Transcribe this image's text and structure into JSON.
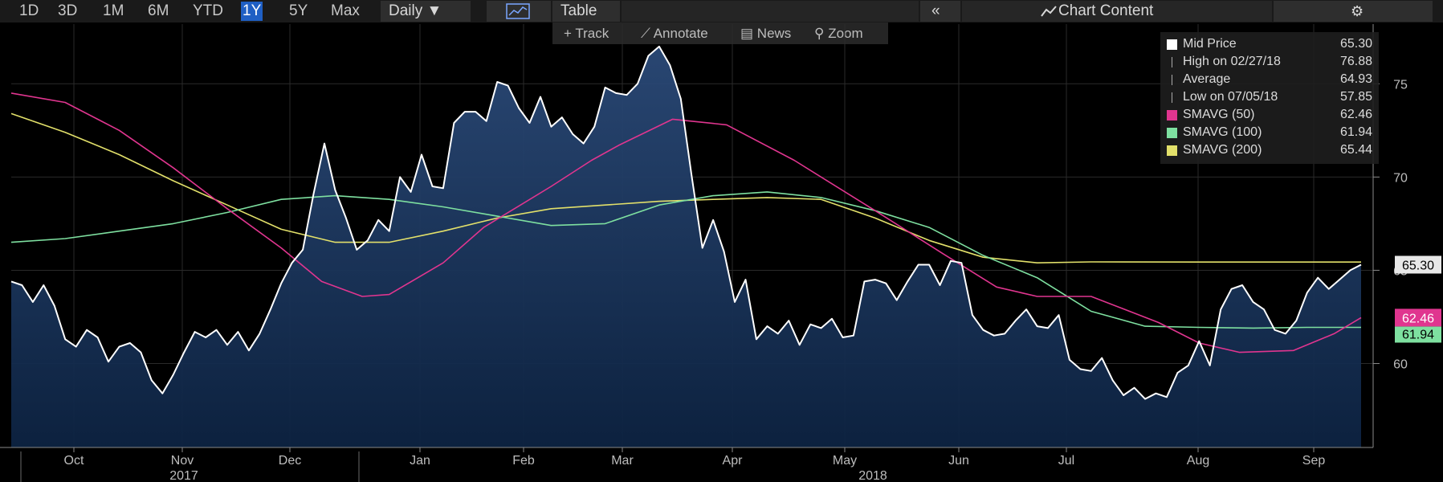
{
  "toolbar": {
    "ranges": [
      "1D",
      "3D",
      "1M",
      "6M",
      "YTD",
      "1Y",
      "5Y",
      "Max"
    ],
    "active_range": "1Y",
    "interval": "Daily ▼",
    "chart_icon": "line-chart-icon",
    "table_label": "Table",
    "collapse": "«",
    "chart_content": "Chart Content",
    "settings_icon": "gear-icon"
  },
  "tools": {
    "track": "Track",
    "annotate": "Annotate",
    "news": "News",
    "zoom": "Zoom"
  },
  "legend": [
    {
      "name": "Mid Price",
      "value": "65.30",
      "color": "#ffffff"
    },
    {
      "name": "High on 02/27/18",
      "value": "76.88",
      "color": "#aaaaaa"
    },
    {
      "name": "Average",
      "value": "64.93",
      "color": "#aaaaaa"
    },
    {
      "name": "Low on 07/05/18",
      "value": "57.85",
      "color": "#aaaaaa"
    },
    {
      "name": "SMAVG (50)",
      "value": "62.46",
      "color": "#e0358f"
    },
    {
      "name": "SMAVG (100)",
      "value": "61.94",
      "color": "#7ee0a0"
    },
    {
      "name": "SMAVG (200)",
      "value": "65.44",
      "color": "#e2e06a"
    }
  ],
  "badges": {
    "price": "65.30",
    "sma50": "62.46",
    "sma100": "61.94"
  },
  "chart_data": {
    "type": "line",
    "title": "",
    "xlabel": "",
    "ylabel": "",
    "ylim": [
      55.5,
      78.2
    ],
    "y_ticks": [
      60,
      65,
      70,
      75
    ],
    "x_ticks": [
      "Oct",
      "Nov",
      "Dec",
      "Jan",
      "Feb",
      "Mar",
      "Apr",
      "May",
      "Jun",
      "Jul",
      "Aug",
      "Sep"
    ],
    "year_labels": [
      "2017",
      "2018"
    ],
    "series": [
      {
        "name": "Mid Price",
        "color": "#ffffff",
        "fill": true,
        "values": [
          [
            0,
            64.4
          ],
          [
            4,
            64.2
          ],
          [
            8,
            63.3
          ],
          [
            12,
            64.2
          ],
          [
            16,
            63.1
          ],
          [
            20,
            61.3
          ],
          [
            24,
            60.9
          ],
          [
            28,
            61.8
          ],
          [
            32,
            61.4
          ],
          [
            36,
            60.1
          ],
          [
            40,
            60.9
          ],
          [
            44,
            61.1
          ],
          [
            48,
            60.6
          ],
          [
            52,
            59.1
          ],
          [
            56,
            58.4
          ],
          [
            60,
            59.4
          ],
          [
            64,
            60.6
          ],
          [
            68,
            61.7
          ],
          [
            72,
            61.4
          ],
          [
            76,
            61.8
          ],
          [
            80,
            61.0
          ],
          [
            84,
            61.7
          ],
          [
            88,
            60.7
          ],
          [
            92,
            61.6
          ],
          [
            96,
            62.9
          ],
          [
            100,
            64.3
          ],
          [
            104,
            65.4
          ],
          [
            108,
            66.1
          ],
          [
            112,
            69.1
          ],
          [
            116,
            71.8
          ],
          [
            120,
            69.3
          ],
          [
            124,
            67.8
          ],
          [
            128,
            66.1
          ],
          [
            132,
            66.6
          ],
          [
            136,
            67.7
          ],
          [
            140,
            67.1
          ],
          [
            144,
            70.0
          ],
          [
            148,
            69.2
          ],
          [
            152,
            71.2
          ],
          [
            156,
            69.5
          ],
          [
            160,
            69.4
          ],
          [
            164,
            72.9
          ],
          [
            168,
            73.5
          ],
          [
            172,
            73.5
          ],
          [
            176,
            73.0
          ],
          [
            180,
            75.1
          ],
          [
            184,
            74.9
          ],
          [
            188,
            73.7
          ],
          [
            192,
            72.9
          ],
          [
            196,
            74.3
          ],
          [
            200,
            72.7
          ],
          [
            204,
            73.2
          ],
          [
            208,
            72.3
          ],
          [
            212,
            71.8
          ],
          [
            216,
            72.7
          ],
          [
            220,
            74.8
          ],
          [
            224,
            74.5
          ],
          [
            228,
            74.4
          ],
          [
            232,
            75.0
          ],
          [
            236,
            76.5
          ],
          [
            240,
            77.0
          ],
          [
            244,
            76.0
          ],
          [
            248,
            74.2
          ],
          [
            252,
            70.1
          ],
          [
            256,
            66.2
          ],
          [
            260,
            67.7
          ],
          [
            264,
            66.0
          ],
          [
            268,
            63.3
          ],
          [
            272,
            64.5
          ],
          [
            276,
            61.3
          ],
          [
            280,
            62.0
          ],
          [
            284,
            61.6
          ],
          [
            288,
            62.3
          ],
          [
            292,
            61.0
          ],
          [
            296,
            62.1
          ],
          [
            300,
            61.9
          ],
          [
            304,
            62.4
          ],
          [
            308,
            61.4
          ],
          [
            312,
            61.5
          ],
          [
            316,
            64.4
          ],
          [
            320,
            64.5
          ],
          [
            324,
            64.3
          ],
          [
            328,
            63.4
          ],
          [
            332,
            64.4
          ],
          [
            336,
            65.3
          ],
          [
            340,
            65.3
          ],
          [
            344,
            64.2
          ],
          [
            348,
            65.5
          ],
          [
            352,
            65.4
          ],
          [
            356,
            62.6
          ],
          [
            360,
            61.8
          ],
          [
            364,
            61.5
          ],
          [
            368,
            61.6
          ],
          [
            372,
            62.3
          ],
          [
            376,
            62.9
          ],
          [
            380,
            62.0
          ],
          [
            384,
            61.9
          ],
          [
            388,
            62.6
          ],
          [
            392,
            60.2
          ],
          [
            396,
            59.7
          ],
          [
            400,
            59.6
          ],
          [
            404,
            60.3
          ],
          [
            408,
            59.1
          ],
          [
            412,
            58.3
          ],
          [
            416,
            58.7
          ],
          [
            420,
            58.1
          ],
          [
            424,
            58.4
          ],
          [
            428,
            58.2
          ],
          [
            432,
            59.5
          ],
          [
            436,
            59.9
          ],
          [
            440,
            61.2
          ],
          [
            444,
            59.9
          ],
          [
            448,
            62.9
          ],
          [
            452,
            64.0
          ],
          [
            456,
            64.2
          ],
          [
            460,
            63.3
          ],
          [
            464,
            62.9
          ],
          [
            468,
            61.8
          ],
          [
            472,
            61.6
          ],
          [
            476,
            62.3
          ],
          [
            480,
            63.8
          ],
          [
            484,
            64.6
          ],
          [
            488,
            64.0
          ],
          [
            492,
            64.5
          ],
          [
            496,
            65.0
          ],
          [
            500,
            65.3
          ]
        ]
      },
      {
        "name": "SMAVG (50)",
        "color": "#e0358f",
        "values": [
          [
            0,
            74.5
          ],
          [
            20,
            74.0
          ],
          [
            40,
            72.5
          ],
          [
            60,
            70.5
          ],
          [
            80,
            68.3
          ],
          [
            100,
            66.2
          ],
          [
            110,
            65.0
          ],
          [
            115,
            64.4
          ],
          [
            130,
            63.6
          ],
          [
            140,
            63.7
          ],
          [
            160,
            65.4
          ],
          [
            175,
            67.3
          ],
          [
            200,
            69.5
          ],
          [
            215,
            70.9
          ],
          [
            225,
            71.7
          ],
          [
            245,
            73.1
          ],
          [
            265,
            72.8
          ],
          [
            290,
            70.9
          ],
          [
            320,
            68.2
          ],
          [
            345,
            65.9
          ],
          [
            365,
            64.1
          ],
          [
            380,
            63.6
          ],
          [
            400,
            63.6
          ],
          [
            425,
            62.2
          ],
          [
            440,
            61.1
          ],
          [
            455,
            60.6
          ],
          [
            475,
            60.7
          ],
          [
            490,
            61.6
          ],
          [
            500,
            62.46
          ]
        ]
      },
      {
        "name": "SMAVG (100)",
        "color": "#7ee0a0",
        "values": [
          [
            0,
            66.5
          ],
          [
            20,
            66.7
          ],
          [
            40,
            67.1
          ],
          [
            60,
            67.5
          ],
          [
            80,
            68.1
          ],
          [
            100,
            68.8
          ],
          [
            120,
            69.0
          ],
          [
            140,
            68.8
          ],
          [
            160,
            68.4
          ],
          [
            180,
            67.9
          ],
          [
            200,
            67.4
          ],
          [
            220,
            67.5
          ],
          [
            240,
            68.5
          ],
          [
            260,
            69.0
          ],
          [
            280,
            69.2
          ],
          [
            300,
            68.9
          ],
          [
            320,
            68.2
          ],
          [
            340,
            67.3
          ],
          [
            360,
            65.8
          ],
          [
            380,
            64.6
          ],
          [
            400,
            62.8
          ],
          [
            420,
            62.0
          ],
          [
            440,
            61.94
          ],
          [
            460,
            61.9
          ],
          [
            480,
            61.94
          ],
          [
            500,
            61.94
          ]
        ]
      },
      {
        "name": "SMAVG (200)",
        "color": "#e2e06a",
        "values": [
          [
            0,
            73.4
          ],
          [
            20,
            72.4
          ],
          [
            40,
            71.2
          ],
          [
            60,
            69.8
          ],
          [
            80,
            68.5
          ],
          [
            100,
            67.2
          ],
          [
            120,
            66.5
          ],
          [
            140,
            66.5
          ],
          [
            160,
            67.1
          ],
          [
            180,
            67.8
          ],
          [
            200,
            68.3
          ],
          [
            220,
            68.5
          ],
          [
            240,
            68.7
          ],
          [
            260,
            68.8
          ],
          [
            280,
            68.9
          ],
          [
            300,
            68.8
          ],
          [
            320,
            67.8
          ],
          [
            340,
            66.6
          ],
          [
            360,
            65.7
          ],
          [
            380,
            65.4
          ],
          [
            400,
            65.45
          ],
          [
            440,
            65.44
          ],
          [
            470,
            65.44
          ],
          [
            500,
            65.44
          ]
        ]
      }
    ]
  }
}
